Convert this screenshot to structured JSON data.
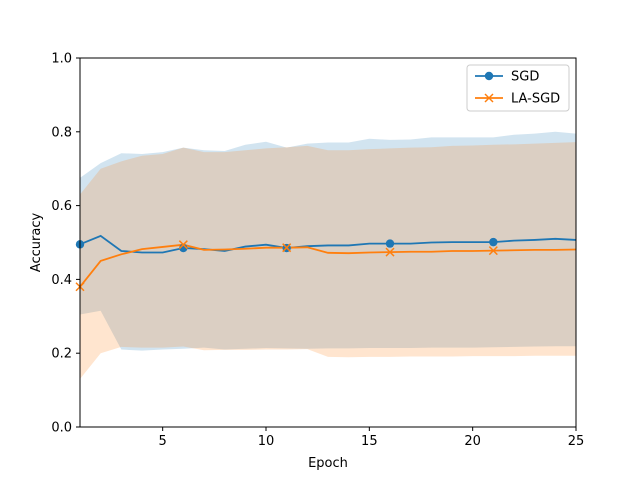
{
  "chart_data": {
    "type": "line",
    "xlabel": "Epoch",
    "ylabel": "Accuracy",
    "xlim": [
      1,
      25
    ],
    "ylim": [
      0.0,
      1.0
    ],
    "xticks": [
      5,
      10,
      15,
      20,
      25
    ],
    "yticks": [
      0.0,
      0.2,
      0.4,
      0.6,
      0.8,
      1.0
    ],
    "xtick_labels": [
      "5",
      "10",
      "15",
      "20",
      "25"
    ],
    "ytick_labels": [
      "0.0",
      "0.2",
      "0.4",
      "0.6",
      "0.8",
      "1.0"
    ],
    "grid": false,
    "legend_position": "top-right",
    "x": [
      1,
      2,
      3,
      4,
      5,
      6,
      7,
      8,
      9,
      10,
      11,
      12,
      13,
      14,
      15,
      16,
      17,
      18,
      19,
      20,
      21,
      22,
      23,
      24,
      25
    ],
    "series": [
      {
        "name": "SGD",
        "color": "#1f77b4",
        "marker": "circle",
        "marker_every": 5,
        "values": [
          0.495,
          0.518,
          0.477,
          0.473,
          0.473,
          0.485,
          0.482,
          0.477,
          0.489,
          0.494,
          0.485,
          0.49,
          0.492,
          0.492,
          0.497,
          0.497,
          0.497,
          0.5,
          0.501,
          0.501,
          0.501,
          0.505,
          0.507,
          0.51,
          0.507
        ],
        "upper": [
          0.675,
          0.715,
          0.742,
          0.74,
          0.745,
          0.757,
          0.75,
          0.748,
          0.765,
          0.773,
          0.757,
          0.768,
          0.771,
          0.771,
          0.781,
          0.778,
          0.779,
          0.785,
          0.785,
          0.785,
          0.785,
          0.792,
          0.795,
          0.8,
          0.795
        ],
        "lower": [
          0.305,
          0.315,
          0.21,
          0.207,
          0.21,
          0.212,
          0.215,
          0.21,
          0.212,
          0.214,
          0.213,
          0.212,
          0.213,
          0.213,
          0.214,
          0.214,
          0.214,
          0.215,
          0.215,
          0.215,
          0.216,
          0.217,
          0.218,
          0.219,
          0.219
        ]
      },
      {
        "name": "LA-SGD",
        "color": "#ff7f0e",
        "marker": "x",
        "marker_every": 5,
        "values": [
          0.38,
          0.45,
          0.468,
          0.482,
          0.488,
          0.494,
          0.48,
          0.481,
          0.483,
          0.486,
          0.486,
          0.487,
          0.472,
          0.471,
          0.473,
          0.474,
          0.475,
          0.475,
          0.477,
          0.477,
          0.478,
          0.479,
          0.48,
          0.48,
          0.481
        ],
        "upper": [
          0.63,
          0.7,
          0.72,
          0.735,
          0.74,
          0.757,
          0.745,
          0.745,
          0.75,
          0.755,
          0.758,
          0.762,
          0.75,
          0.75,
          0.753,
          0.755,
          0.757,
          0.758,
          0.762,
          0.763,
          0.765,
          0.766,
          0.768,
          0.77,
          0.772
        ],
        "lower": [
          0.13,
          0.2,
          0.217,
          0.215,
          0.215,
          0.218,
          0.208,
          0.209,
          0.209,
          0.21,
          0.21,
          0.211,
          0.19,
          0.189,
          0.19,
          0.19,
          0.191,
          0.191,
          0.191,
          0.192,
          0.192,
          0.192,
          0.193,
          0.193,
          0.193
        ]
      }
    ]
  }
}
